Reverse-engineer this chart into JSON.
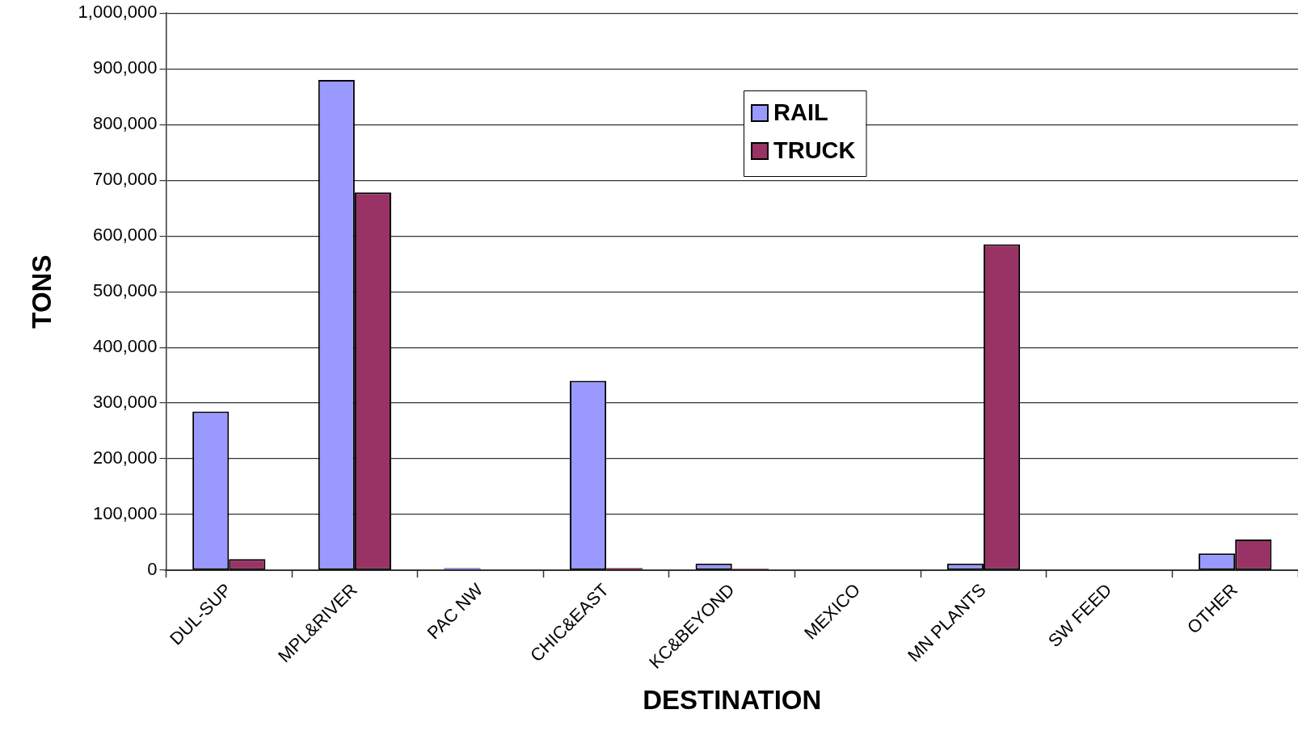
{
  "chart_data": {
    "type": "bar",
    "xlabel": "DESTINATION",
    "ylabel": "TONS",
    "categories": [
      "DUL-SUP",
      "MPL&RIVER",
      "PAC NW",
      "CHIC&EAST",
      "KC&BEYOND",
      "MEXICO",
      "MN PLANTS",
      "SW FEED",
      "OTHER"
    ],
    "series": [
      {
        "name": "RAIL",
        "color": "#9999ff",
        "values": [
          285000,
          880000,
          4000,
          340000,
          12000,
          0,
          12000,
          0,
          30000
        ]
      },
      {
        "name": "TRUCK",
        "color": "#993366",
        "values": [
          20000,
          678000,
          0,
          4000,
          3000,
          0,
          585000,
          0,
          55000
        ]
      }
    ],
    "ylim": [
      0,
      1000000
    ],
    "yticks": [
      {
        "value": 0,
        "label": "0"
      },
      {
        "value": 100000,
        "label": "100,000"
      },
      {
        "value": 200000,
        "label": "200,000"
      },
      {
        "value": 300000,
        "label": "300,000"
      },
      {
        "value": 400000,
        "label": "400,000"
      },
      {
        "value": 500000,
        "label": "500,000"
      },
      {
        "value": 600000,
        "label": "600,000"
      },
      {
        "value": 700000,
        "label": "700,000"
      },
      {
        "value": 800000,
        "label": "800,000"
      },
      {
        "value": 900000,
        "label": "900,000"
      },
      {
        "value": 1000000,
        "label": "1,000,000"
      }
    ],
    "grid": "y",
    "legend": "top"
  }
}
